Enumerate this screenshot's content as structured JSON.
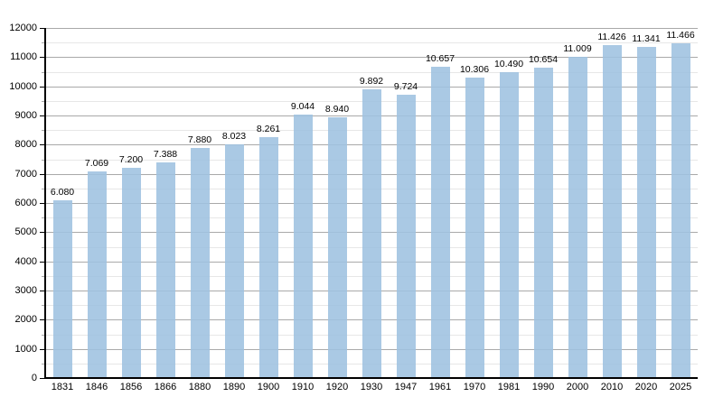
{
  "chart_data": {
    "type": "bar",
    "title": "",
    "xlabel": "",
    "ylabel": "",
    "categories": [
      "1831",
      "1846",
      "1856",
      "1866",
      "1880",
      "1890",
      "1900",
      "1910",
      "1920",
      "1930",
      "1947",
      "1961",
      "1970",
      "1981",
      "1990",
      "2000",
      "2010",
      "2020",
      "2025"
    ],
    "values": [
      6080,
      7069,
      7200,
      7388,
      7880,
      8023,
      8261,
      9044,
      8940,
      9892,
      9724,
      10657,
      10306,
      10490,
      10654,
      11009,
      11426,
      11341,
      11466
    ],
    "value_labels": [
      "6.080",
      "7.069",
      "7.200",
      "7.388",
      "7.880",
      "8.023",
      "8.261",
      "9.044",
      "8.940",
      "9.892",
      "9.724",
      "10.657",
      "10.306",
      "10.490",
      "10.654",
      "11.009",
      "11.426",
      "11.341",
      "11.466"
    ],
    "ylim": [
      0,
      12000
    ],
    "y_major_step": 1000,
    "y_minor_step": 500,
    "y_tick_labels": [
      "0",
      "1000",
      "2000",
      "3000",
      "4000",
      "5000",
      "6000",
      "7000",
      "8000",
      "9000",
      "10000",
      "11000",
      "12000"
    ],
    "legend": "none",
    "grid": {
      "horizontal_major": true,
      "horizontal_minor": true,
      "vertical": false
    },
    "colors": {
      "bar_fill": "#9ec2e0",
      "bar_opacity": 0.88,
      "major_grid": "#a9a9a9",
      "minor_grid": "#e7e7e7",
      "axis": "#000000",
      "text": "#000000",
      "background": "#ffffff"
    }
  }
}
